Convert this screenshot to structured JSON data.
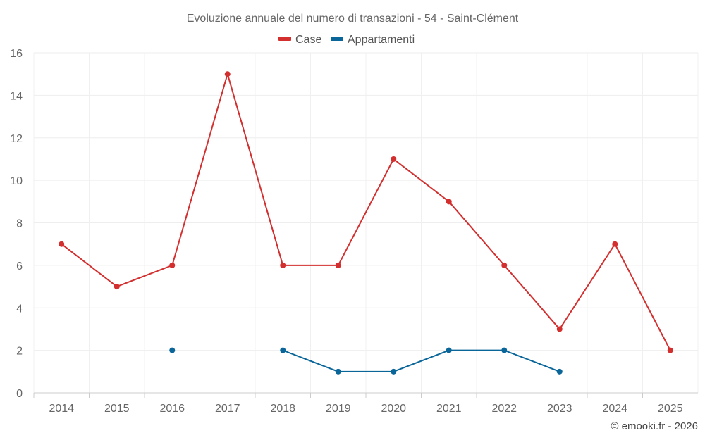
{
  "chart_data": {
    "type": "line",
    "title": "Evoluzione annuale del numero di transazioni - 54 - Saint-Clément",
    "categories": [
      "2014",
      "2015",
      "2016",
      "2017",
      "2018",
      "2019",
      "2020",
      "2021",
      "2022",
      "2023",
      "2024",
      "2025"
    ],
    "ylim": [
      0,
      16
    ],
    "yticks": [
      0,
      2,
      4,
      6,
      8,
      10,
      12,
      14,
      16
    ],
    "grid": true,
    "legend_position": "top-center",
    "series": [
      {
        "name": "Case",
        "color": "#d32f2f",
        "values": [
          7,
          5,
          6,
          15,
          6,
          6,
          11,
          9,
          6,
          3,
          7,
          2
        ]
      },
      {
        "name": "Appartamenti",
        "color": "#0a6699",
        "values": [
          null,
          null,
          2,
          null,
          2,
          1,
          1,
          2,
          2,
          1,
          null,
          null
        ]
      }
    ]
  },
  "credit": "© emooki.fr - 2026"
}
